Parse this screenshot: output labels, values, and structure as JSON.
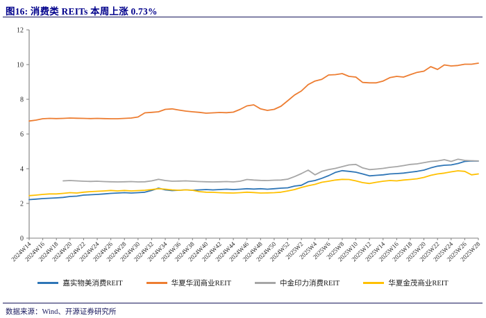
{
  "page": {
    "title": "图16:  消费类 REITs 本周上涨 0.73%",
    "source_note": "数据来源：Wind、开源证券研究所"
  },
  "colors": {
    "title_navy": "#00008B",
    "rule_navy": "#14145a",
    "axis_gray": "#7f7f7f",
    "tick_text": "#262626",
    "series_blue": "#2E75B6",
    "series_orange": "#ED7D31",
    "series_gray": "#A6A6A6",
    "series_yellow": "#FFC000"
  },
  "chart_data": {
    "type": "line",
    "title": "消费类 REITs 本周上涨 0.73%",
    "xlabel": "",
    "ylabel": "",
    "ylim": [
      0,
      12
    ],
    "y_ticks": [
      0,
      2,
      4,
      6,
      8,
      10,
      12
    ],
    "grid": false,
    "legend_position": "bottom",
    "x_weekly": [
      "2024W14",
      "2024W15",
      "2024W16",
      "2024W17",
      "2024W18",
      "2024W19",
      "2024W20",
      "2024W21",
      "2024W22",
      "2024W23",
      "2024W24",
      "2024W25",
      "2024W26",
      "2024W27",
      "2024W28",
      "2024W29",
      "2024W30",
      "2024W31",
      "2024W32",
      "2024W33",
      "2024W34",
      "2024W35",
      "2024W36",
      "2024W37",
      "2024W38",
      "2024W39",
      "2024W40",
      "2024W41",
      "2024W42",
      "2024W43",
      "2024W44",
      "2024W45",
      "2024W46",
      "2024W47",
      "2024W48",
      "2024W49",
      "2024W50",
      "2024W51",
      "2024W52",
      "2025W1",
      "2025W2",
      "2025W3",
      "2025W4",
      "2025W5",
      "2025W6",
      "2025W7",
      "2025W8",
      "2025W9",
      "2025W10",
      "2025W11",
      "2025W12",
      "2025W13",
      "2025W14",
      "2025W15",
      "2025W16",
      "2025W17",
      "2025W18",
      "2025W19",
      "2025W20",
      "2025W21",
      "2025W22",
      "2025W23",
      "2025W24",
      "2025W25",
      "2025W26",
      "2025W27",
      "2025W28"
    ],
    "x_tick_labels": [
      "2024W14",
      "2024W16",
      "2024W18",
      "2024W20",
      "2024W22",
      "2024W24",
      "2024W26",
      "2024W28",
      "2024W30",
      "2024W32",
      "2024W34",
      "2024W36",
      "2024W38",
      "2024W40",
      "2024W42",
      "2024W44",
      "2024W46",
      "2024W48",
      "2024W50",
      "2024W52",
      "2025W2",
      "2025W4",
      "2025W6",
      "2025W8",
      "2025W10",
      "2025W12",
      "2025W14",
      "2025W16",
      "2025W18",
      "2025W20",
      "2025W22",
      "2025W24",
      "2025W26",
      "2025W28"
    ],
    "series": [
      {
        "name": "嘉实物美消费REIT",
        "color": "#2E75B6",
        "values": [
          2.22,
          2.25,
          2.28,
          2.3,
          2.32,
          2.35,
          2.4,
          2.42,
          2.48,
          2.5,
          2.52,
          2.55,
          2.58,
          2.6,
          2.62,
          2.6,
          2.62,
          2.65,
          2.75,
          2.88,
          2.78,
          2.74,
          2.76,
          2.78,
          2.76,
          2.78,
          2.8,
          2.78,
          2.8,
          2.82,
          2.8,
          2.82,
          2.85,
          2.83,
          2.85,
          2.82,
          2.85,
          2.88,
          2.9,
          3.0,
          3.05,
          3.25,
          3.32,
          3.45,
          3.6,
          3.79,
          3.89,
          3.85,
          3.8,
          3.7,
          3.59,
          3.62,
          3.65,
          3.7,
          3.72,
          3.75,
          3.8,
          3.85,
          3.92,
          4.05,
          4.15,
          4.2,
          4.22,
          4.3,
          4.42,
          4.45,
          4.44
        ]
      },
      {
        "name": "华夏华润商业REIT",
        "color": "#ED7D31",
        "values": [
          6.75,
          6.8,
          6.88,
          6.9,
          6.89,
          6.9,
          6.92,
          6.91,
          6.9,
          6.89,
          6.9,
          6.89,
          6.88,
          6.88,
          6.9,
          6.92,
          6.98,
          7.22,
          7.25,
          7.28,
          7.42,
          7.45,
          7.38,
          7.32,
          7.28,
          7.25,
          7.2,
          7.22,
          7.24,
          7.23,
          7.26,
          7.42,
          7.62,
          7.68,
          7.45,
          7.36,
          7.42,
          7.6,
          7.92,
          8.25,
          8.48,
          8.85,
          9.05,
          9.15,
          9.4,
          9.42,
          9.48,
          9.32,
          9.28,
          8.97,
          8.95,
          8.95,
          9.05,
          9.25,
          9.32,
          9.28,
          9.42,
          9.55,
          9.62,
          9.88,
          9.72,
          9.98,
          9.92,
          9.95,
          10.02,
          10.02,
          10.08
        ]
      },
      {
        "name": "中金印力消费REIT",
        "color": "#A6A6A6",
        "values": [
          null,
          null,
          null,
          null,
          null,
          3.3,
          3.32,
          3.3,
          3.28,
          3.27,
          3.28,
          3.26,
          3.25,
          3.24,
          3.25,
          3.26,
          3.24,
          3.25,
          3.3,
          3.39,
          3.32,
          3.28,
          3.29,
          3.3,
          3.28,
          3.26,
          3.25,
          3.24,
          3.25,
          3.26,
          3.24,
          3.28,
          3.38,
          3.35,
          3.33,
          3.32,
          3.34,
          3.35,
          3.4,
          3.55,
          3.72,
          3.92,
          3.65,
          3.85,
          3.95,
          4.02,
          4.12,
          4.22,
          4.25,
          4.05,
          3.95,
          3.98,
          4.02,
          4.08,
          4.12,
          4.18,
          4.25,
          4.28,
          4.35,
          4.42,
          4.45,
          4.52,
          4.42,
          4.55,
          4.48,
          4.46,
          4.45
        ]
      },
      {
        "name": "华夏金茂商业REIT",
        "color": "#FFC000",
        "values": [
          2.45,
          2.48,
          2.52,
          2.55,
          2.55,
          2.58,
          2.62,
          2.6,
          2.65,
          2.68,
          2.7,
          2.72,
          2.75,
          2.72,
          2.75,
          2.72,
          2.74,
          2.76,
          2.8,
          2.85,
          2.82,
          2.78,
          2.76,
          2.78,
          2.76,
          2.68,
          2.65,
          2.64,
          2.62,
          2.61,
          2.6,
          2.62,
          2.65,
          2.63,
          2.6,
          2.61,
          2.62,
          2.65,
          2.72,
          2.8,
          2.92,
          3.02,
          3.1,
          3.22,
          3.28,
          3.35,
          3.39,
          3.38,
          3.3,
          3.2,
          3.15,
          3.22,
          3.28,
          3.32,
          3.3,
          3.35,
          3.38,
          3.42,
          3.5,
          3.62,
          3.7,
          3.75,
          3.82,
          3.88,
          3.85,
          3.65,
          3.7
        ]
      }
    ]
  }
}
